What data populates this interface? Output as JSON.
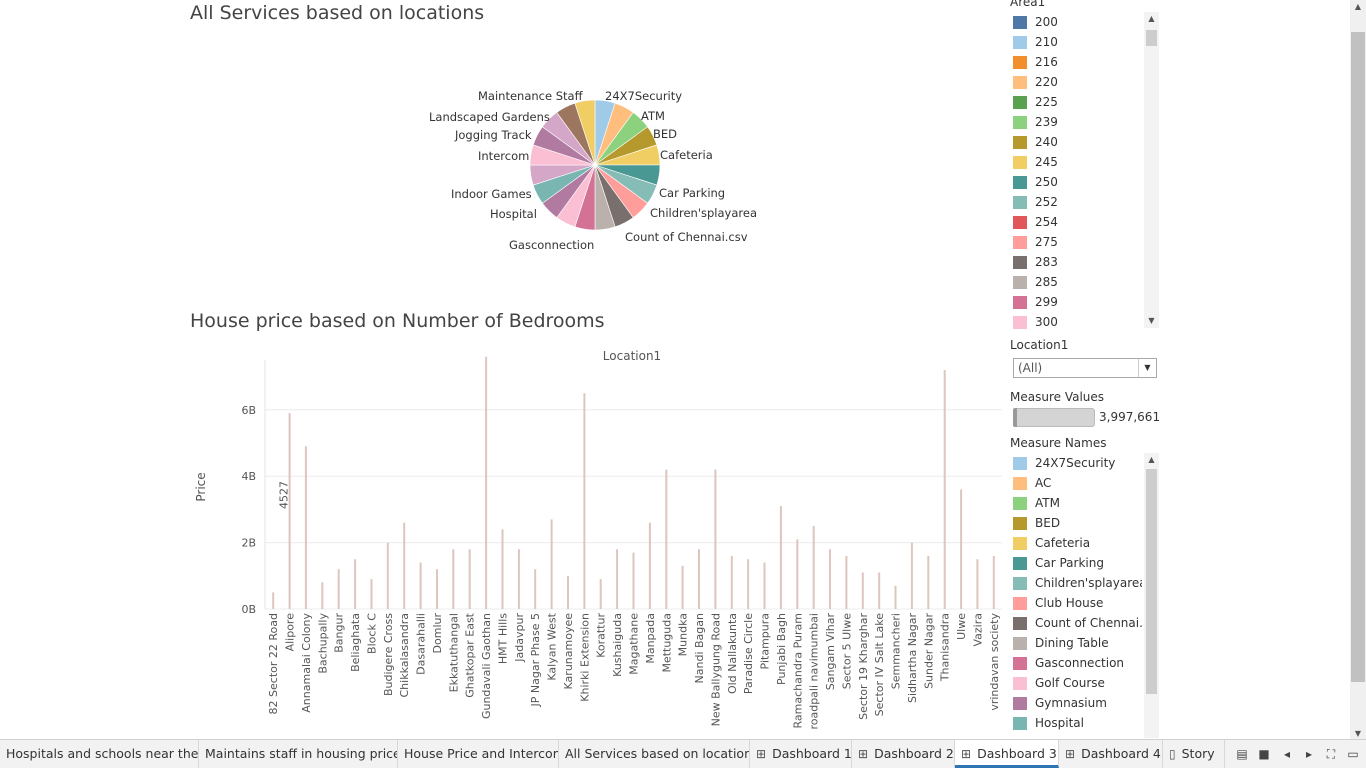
{
  "pie": {
    "title": "All Services based on locations",
    "colors": [
      "#a0cbe8",
      "#ffbe7d",
      "#8cd17d",
      "#b6992d",
      "#f1ce63",
      "#499894",
      "#86bcb6",
      "#ff9d9a",
      "#79706e",
      "#bab0ac",
      "#d37295",
      "#fabfd2",
      "#b07aa1",
      "#79b6b2",
      "#d4a6c8",
      "#fabfd2",
      "#b07aa1",
      "#d4a6c8",
      "#9d7660",
      "#f1ce63"
    ],
    "labels": [
      "Maintenance Staff",
      "24X7Security",
      "ATM",
      "BED",
      "Cafeteria",
      "Car Parking",
      "Children'splayarea",
      "Count of Chennai.csv",
      "Gasconnection",
      "Hospital",
      "Indoor Games",
      "Intercom",
      "Jogging Track",
      "Landscaped Gardens"
    ]
  },
  "bars": {
    "title": "House price based on Number of Bedrooms",
    "column_header": "Location1",
    "ylabel": "Price",
    "yticks": [
      "6B",
      "4B",
      "2B",
      "0B"
    ],
    "annotation": "4527",
    "color": "#dcc6bd",
    "categories": [
      "82 Sector 22 Road",
      "Alipore",
      "Annamalai Colony",
      "Bachupally",
      "Bangur",
      "Beliaghata",
      "Block C",
      "Budigere Cross",
      "Chikkalasandra",
      "Dasarahalli",
      "Domlur",
      "Ekkatuthangal",
      "Ghatkopar East",
      "Gundavali Gaothan",
      "HMT Hills",
      "Jadavpur",
      "JP Nagar Phase 5",
      "Kalyan West",
      "Karunamoyee",
      "Khirki Extension",
      "Korattur",
      "Kushaiguda",
      "Magathane",
      "Manpada",
      "Mettuguda",
      "Mundka",
      "Nandi Bagan",
      "New Ballygung Road",
      "Old Nallakunta",
      "Paradise Circle",
      "Pitampura",
      "Punjabi Bagh",
      "Ramachandra Puram",
      "roadpali navimumbai",
      "Sangam Vihar",
      "Sector 5 Ulwe",
      "Sector 19 Kharghar",
      "Sector IV Salt Lake",
      "Semmancheri",
      "Sidhartha Nagar",
      "Sunder Nagar",
      "Thanisandra",
      "Ulwe",
      "Vazira",
      "vrindavan society"
    ]
  },
  "chart_data": {
    "type": "bar",
    "title": "House price based on Number of Bedrooms",
    "ylabel": "Price",
    "ylim": [
      0,
      7500000000
    ],
    "categories": [
      "82 Sector 22 Road",
      "Alipore",
      "Annamalai Colony",
      "Bachupally",
      "Bangur",
      "Beliaghata",
      "Block C",
      "Budigere Cross",
      "Chikkalasandra",
      "Dasarahalli",
      "Domlur",
      "Ekkatuthangal",
      "Ghatkopar East",
      "Gundavali Gaothan",
      "HMT Hills",
      "Jadavpur",
      "JP Nagar Phase 5",
      "Kalyan West",
      "Karunamoyee",
      "Khirki Extension",
      "Korattur",
      "Kushaiguda",
      "Magathane",
      "Manpada",
      "Mettuguda",
      "Mundka",
      "Nandi Bagan",
      "New Ballygung Road",
      "Old Nallakunta",
      "Paradise Circle",
      "Pitampura",
      "Punjabi Bagh",
      "Ramachandra Puram",
      "roadpali navimumbai",
      "Sangam Vihar",
      "Sector 5 Ulwe",
      "Sector 19 Kharghar",
      "Sector IV Salt Lake",
      "Semmancheri",
      "Sidhartha Nagar",
      "Sunder Nagar",
      "Thanisandra",
      "Ulwe",
      "Vazira",
      "vrindavan society"
    ],
    "values": [
      500000000,
      5900000000,
      4900000000,
      800000000,
      1200000000,
      1500000000,
      900000000,
      2000000000,
      2600000000,
      1400000000,
      1200000000,
      1800000000,
      1800000000,
      7600000000,
      2400000000,
      1800000000,
      1200000000,
      2700000000,
      1000000000,
      6500000000,
      900000000,
      1800000000,
      1700000000,
      2600000000,
      4200000000,
      1300000000,
      1800000000,
      4200000000,
      1600000000,
      1500000000,
      1400000000,
      3100000000,
      2100000000,
      2500000000,
      1800000000,
      1600000000,
      1100000000,
      1100000000,
      700000000,
      2000000000,
      1600000000,
      7200000000,
      3600000000,
      1500000000,
      1600000000
    ]
  },
  "area_panel": {
    "title": "Area1",
    "items": [
      {
        "label": "200",
        "color": "#4e79a7"
      },
      {
        "label": "210",
        "color": "#a0cbe8"
      },
      {
        "label": "216",
        "color": "#f28e2b"
      },
      {
        "label": "220",
        "color": "#ffbe7d"
      },
      {
        "label": "225",
        "color": "#59a14f"
      },
      {
        "label": "239",
        "color": "#8cd17d"
      },
      {
        "label": "240",
        "color": "#b6992d"
      },
      {
        "label": "245",
        "color": "#f1ce63"
      },
      {
        "label": "250",
        "color": "#499894"
      },
      {
        "label": "252",
        "color": "#86bcb6"
      },
      {
        "label": "254",
        "color": "#e15759"
      },
      {
        "label": "275",
        "color": "#ff9d9a"
      },
      {
        "label": "283",
        "color": "#79706e"
      },
      {
        "label": "285",
        "color": "#bab0ac"
      },
      {
        "label": "299",
        "color": "#d37295"
      },
      {
        "label": "300",
        "color": "#fabfd2"
      }
    ]
  },
  "location_filter": {
    "title": "Location1",
    "value": "(All)"
  },
  "measure_values": {
    "title": "Measure Values",
    "value": "3,997,661"
  },
  "measure_names": {
    "title": "Measure Names",
    "items": [
      {
        "label": "24X7Security",
        "color": "#a0cbe8"
      },
      {
        "label": "AC",
        "color": "#ffbe7d"
      },
      {
        "label": "ATM",
        "color": "#8cd17d"
      },
      {
        "label": "BED",
        "color": "#b6992d"
      },
      {
        "label": "Cafeteria",
        "color": "#f1ce63"
      },
      {
        "label": "Car Parking",
        "color": "#499894"
      },
      {
        "label": "Children'splayarea",
        "color": "#86bcb6"
      },
      {
        "label": "Club House",
        "color": "#ff9d9a"
      },
      {
        "label": "Count of Chennai...",
        "color": "#79706e"
      },
      {
        "label": "Dining Table",
        "color": "#bab0ac"
      },
      {
        "label": "Gasconnection",
        "color": "#d37295"
      },
      {
        "label": "Golf Course",
        "color": "#fabfd2"
      },
      {
        "label": "Gymnasium",
        "color": "#b07aa1"
      },
      {
        "label": "Hospital",
        "color": "#79b6b2"
      }
    ]
  },
  "tabs": [
    {
      "label": "Hospitals and schools near the ...",
      "icon": ""
    },
    {
      "label": "Maintains staff in housing prices",
      "icon": ""
    },
    {
      "label": "House Price and Intercom",
      "icon": ""
    },
    {
      "label": "All Services based on locations",
      "icon": ""
    },
    {
      "label": "Dashboard 1",
      "icon": "dashboard-icon"
    },
    {
      "label": "Dashboard 2",
      "icon": "dashboard-icon"
    },
    {
      "label": "Dashboard 3",
      "icon": "dashboard-icon",
      "active": true
    },
    {
      "label": "Dashboard 4",
      "icon": "dashboard-icon"
    },
    {
      "label": "Story",
      "icon": "story-icon"
    }
  ]
}
